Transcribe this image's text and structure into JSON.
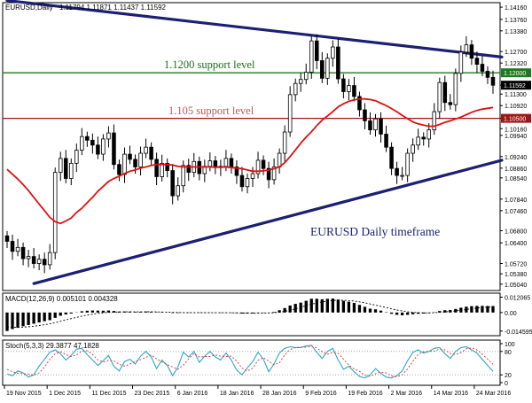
{
  "chart_data": {
    "type": "candlestick",
    "symbol": "EURUSD",
    "timeframe": "Daily",
    "header": {
      "title": "EURUSD,Daily",
      "ohlc": "1.11794 1.11871 1.11437 1.11592"
    },
    "price_axis": {
      "ylim": [
        1.0486,
        1.1428
      ],
      "ticks": [
        "1.14160",
        "1.13760",
        "1.13380",
        "1.12700",
        "1.12320",
        "1.11592",
        "1.11300",
        "1.10920",
        "1.10500",
        "1.10160",
        "1.09940",
        "1.09240",
        "1.08860",
        "1.08540",
        "1.07840",
        "1.07460",
        "1.06800",
        "1.06400",
        "1.05720",
        "1.05380",
        "1.05040"
      ],
      "tick_values": [
        1.1416,
        1.1376,
        1.1338,
        1.127,
        1.1232,
        1.11592,
        1.113,
        1.1092,
        1.105,
        1.1016,
        1.0994,
        1.0924,
        1.0886,
        1.0854,
        1.0784,
        1.0746,
        1.068,
        1.064,
        1.0572,
        1.0538,
        1.0504
      ],
      "last_price_label": "1.11592",
      "current_price": 1.11592
    },
    "x_axis": {
      "labels": [
        "19 Nov 2015",
        "1 Dec 2015",
        "11 Dec 2015",
        "23 Dec 2015",
        "6 Jan 2016",
        "18 Jan 2016",
        "28 Jan 2016",
        "9 Feb 2016",
        "19 Feb 2016",
        "2 Mar 2016",
        "14 Mar 2016",
        "24 Mar 2016"
      ],
      "label_bar_index": [
        0,
        8,
        16,
        24,
        32,
        40,
        48,
        56,
        64,
        72,
        80,
        88
      ]
    },
    "candles_close": [
      1.0645,
      1.0612,
      1.0625,
      1.0588,
      1.0595,
      1.0572,
      1.0586,
      1.0568,
      1.0608,
      1.0872,
      1.0918,
      1.0852,
      1.0902,
      1.0945,
      1.099,
      1.0978,
      1.0962,
      1.0932,
      1.0982,
      1.1002,
      1.0898,
      1.0865,
      1.0932,
      1.0915,
      1.089,
      1.0935,
      1.0955,
      1.0915,
      1.0858,
      1.0902,
      1.0878,
      1.0795,
      1.0828,
      1.0895,
      1.0872,
      1.0908,
      1.0868,
      1.0892,
      1.091,
      1.0888,
      1.0892,
      1.0918,
      1.089,
      1.0862,
      1.0825,
      1.0852,
      1.0868,
      1.0912,
      1.0885,
      1.0848,
      1.089,
      1.0935,
      1.1005,
      1.1128,
      1.1165,
      1.1178,
      1.1202,
      1.1305,
      1.124,
      1.1182,
      1.1248,
      1.1285,
      1.118,
      1.1138,
      1.1158,
      1.1122,
      1.1078,
      1.1042,
      1.1012,
      1.1048,
      1.0998,
      1.0955,
      1.0885,
      1.0862,
      1.0862,
      1.0935,
      1.0962,
      1.0988,
      1.0982,
      1.1012,
      1.1072,
      1.1168,
      1.1102,
      1.1095,
      1.1198,
      1.1268,
      1.1292,
      1.1248,
      1.1228,
      1.1205,
      1.1185,
      1.1159
    ],
    "moving_average": [
      1.0882,
      1.0866,
      1.085,
      1.0832,
      1.0812,
      1.079,
      1.0768,
      1.0746,
      1.0724,
      1.071,
      1.0704,
      1.0712,
      1.0722,
      1.074,
      1.0754,
      1.0772,
      1.079,
      1.081,
      1.0826,
      1.0842,
      1.0852,
      1.086,
      1.0868,
      1.0876,
      1.088,
      1.0886,
      1.089,
      1.0895,
      1.0898,
      1.0898,
      1.0898,
      1.0896,
      1.0892,
      1.089,
      1.089,
      1.089,
      1.089,
      1.089,
      1.089,
      1.0889,
      1.0889,
      1.089,
      1.0888,
      1.0886,
      1.0884,
      1.088,
      1.0876,
      1.0876,
      1.0877,
      1.088,
      1.0884,
      1.089,
      1.0904,
      1.0924,
      1.0946,
      1.0968,
      1.0988,
      1.1006,
      1.1026,
      1.1044,
      1.1058,
      1.1072,
      1.1088,
      1.1098,
      1.1106,
      1.1111,
      1.1114,
      1.1114,
      1.1112,
      1.1108,
      1.11,
      1.1092,
      1.1082,
      1.1072,
      1.106,
      1.1049,
      1.1038,
      1.1032,
      1.1028,
      1.1024,
      1.1024,
      1.103,
      1.1037,
      1.1042,
      1.1048,
      1.1054,
      1.1062,
      1.107,
      1.1076,
      1.108,
      1.1083,
      1.1086
    ],
    "support_levels": [
      {
        "label": "1.1200 support level",
        "value": 1.12,
        "axis_label": "1.12000",
        "color": "#1e7a1e"
      },
      {
        "label": "1.105 support level",
        "value": 1.105,
        "axis_label": "1.10500",
        "color": "#a01414"
      }
    ],
    "trendlines": [
      {
        "role": "resistance",
        "from": {
          "bar": 0,
          "price": 1.1438
        },
        "to": {
          "bar": 91,
          "price": 1.1252
        },
        "color": "#1c1f72"
      },
      {
        "role": "support",
        "from": {
          "bar": 5,
          "price": 1.0506
        },
        "to": {
          "bar": 91,
          "price": 1.0912
        },
        "color": "#1c1f72"
      }
    ],
    "annotation": "EURUSD Daily timeframe",
    "annotation_color": "#1c1f72",
    "candle_color": "#000000",
    "ma_color": "#e01010",
    "grid": false,
    "macd": {
      "label": "MACD(12,26,9) 0.005101 0.004328",
      "ticks": [
        "0.012065",
        "0.00",
        "-0.014595"
      ],
      "tick_values": [
        0.012065,
        0.0,
        -0.014595
      ],
      "ylim": [
        -0.0168,
        0.0138
      ],
      "histogram": [
        -0.0145,
        -0.013,
        -0.012,
        -0.0108,
        -0.0098,
        -0.0088,
        -0.0078,
        -0.0068,
        -0.006,
        -0.0042,
        -0.0025,
        -0.0015,
        -0.0008,
        0.0002,
        0.001,
        0.0014,
        0.0016,
        0.0015,
        0.0014,
        0.0016,
        0.0012,
        0.0008,
        0.0008,
        0.0007,
        0.0005,
        0.0006,
        0.0008,
        0.0006,
        0.0003,
        0.0003,
        0.0001,
        -0.0004,
        -0.0004,
        -0.0001,
        -0.0002,
        0.0,
        -0.0002,
        -0.0002,
        -0.0001,
        -0.0002,
        -0.0003,
        -0.0002,
        -0.0003,
        -0.0005,
        -0.0008,
        -0.0008,
        -0.0007,
        -0.0003,
        -0.0003,
        -0.0002,
        0.0005,
        0.0018,
        0.0035,
        0.0055,
        0.0068,
        0.0078,
        0.0092,
        0.0108,
        0.0108,
        0.0104,
        0.0108,
        0.011,
        0.0102,
        0.0092,
        0.0085,
        0.0075,
        0.006,
        0.0045,
        0.003,
        0.0025,
        0.0015,
        0.0003,
        -0.001,
        -0.0018,
        -0.0022,
        -0.0018,
        -0.0014,
        -0.001,
        -0.0008,
        -0.0004,
        0.0002,
        0.0012,
        0.0018,
        0.002,
        0.0028,
        0.0038,
        0.0046,
        0.005,
        0.0052,
        0.0052,
        0.0051,
        0.0051
      ],
      "signal": [
        -0.0112,
        -0.0115,
        -0.0116,
        -0.0115,
        -0.0112,
        -0.0108,
        -0.0102,
        -0.0096,
        -0.0089,
        -0.008,
        -0.0069,
        -0.0058,
        -0.0048,
        -0.0038,
        -0.0028,
        -0.002,
        -0.0013,
        -0.0007,
        -0.0003,
        0.0001,
        0.0003,
        0.0004,
        0.0005,
        0.0005,
        0.0005,
        0.0005,
        0.0006,
        0.0006,
        0.0005,
        0.0004,
        0.0003,
        0.0001,
        0.0,
        -0.0001,
        -0.0001,
        -0.0001,
        -0.0001,
        -0.0001,
        -0.0001,
        -0.0002,
        -0.0002,
        -0.0002,
        -0.0002,
        -0.0003,
        -0.0004,
        -0.0005,
        -0.0006,
        -0.0005,
        -0.0004,
        -0.0004,
        -0.0002,
        0.0002,
        0.0009,
        0.0018,
        0.0029,
        0.0041,
        0.0053,
        0.0065,
        0.0076,
        0.0083,
        0.0089,
        0.0094,
        0.0096,
        0.0096,
        0.0094,
        0.009,
        0.0084,
        0.0076,
        0.0067,
        0.0058,
        0.0049,
        0.004,
        0.0029,
        0.002,
        0.0012,
        0.0006,
        0.0002,
        -0.0001,
        -0.0003,
        -0.0003,
        -0.0002,
        0.0001,
        0.0005,
        0.0008,
        0.0013,
        0.0018,
        0.0024,
        0.003,
        0.0035,
        0.004,
        0.0042,
        0.0043
      ]
    },
    "stochastic": {
      "label": "Stoch(5,3,3) 29.3877 47.1828",
      "ticks": [
        "100",
        "80",
        "20",
        "0"
      ],
      "tick_values": [
        100,
        80,
        20,
        0
      ],
      "ylim": [
        0,
        100
      ],
      "main": [
        22,
        18,
        30,
        25,
        14,
        20,
        42,
        60,
        78,
        84,
        74,
        58,
        70,
        86,
        88,
        72,
        58,
        44,
        56,
        70,
        42,
        30,
        54,
        60,
        48,
        68,
        80,
        66,
        36,
        58,
        44,
        18,
        40,
        78,
        66,
        80,
        52,
        68,
        80,
        66,
        58,
        76,
        58,
        32,
        20,
        38,
        54,
        78,
        60,
        28,
        48,
        76,
        88,
        92,
        90,
        90,
        94,
        96,
        78,
        62,
        80,
        88,
        58,
        34,
        42,
        28,
        16,
        12,
        20,
        36,
        24,
        14,
        12,
        18,
        30,
        56,
        78,
        84,
        76,
        80,
        88,
        90,
        74,
        62,
        80,
        90,
        92,
        84,
        76,
        60,
        44,
        29
      ],
      "signal": [
        34,
        28,
        24,
        23,
        22,
        19,
        25,
        40,
        60,
        74,
        79,
        72,
        67,
        71,
        81,
        82,
        72,
        58,
        53,
        57,
        56,
        47,
        42,
        48,
        54,
        59,
        65,
        71,
        61,
        53,
        46,
        40,
        34,
        45,
        61,
        75,
        66,
        67,
        67,
        71,
        68,
        67,
        68,
        55,
        37,
        30,
        37,
        57,
        64,
        55,
        46,
        51,
        71,
        85,
        90,
        91,
        91,
        93,
        89,
        79,
        73,
        77,
        75,
        60,
        45,
        35,
        29,
        19,
        16,
        23,
        27,
        25,
        17,
        15,
        20,
        35,
        55,
        73,
        79,
        80,
        81,
        86,
        84,
        75,
        72,
        77,
        87,
        89,
        84,
        73,
        60,
        47
      ]
    }
  }
}
